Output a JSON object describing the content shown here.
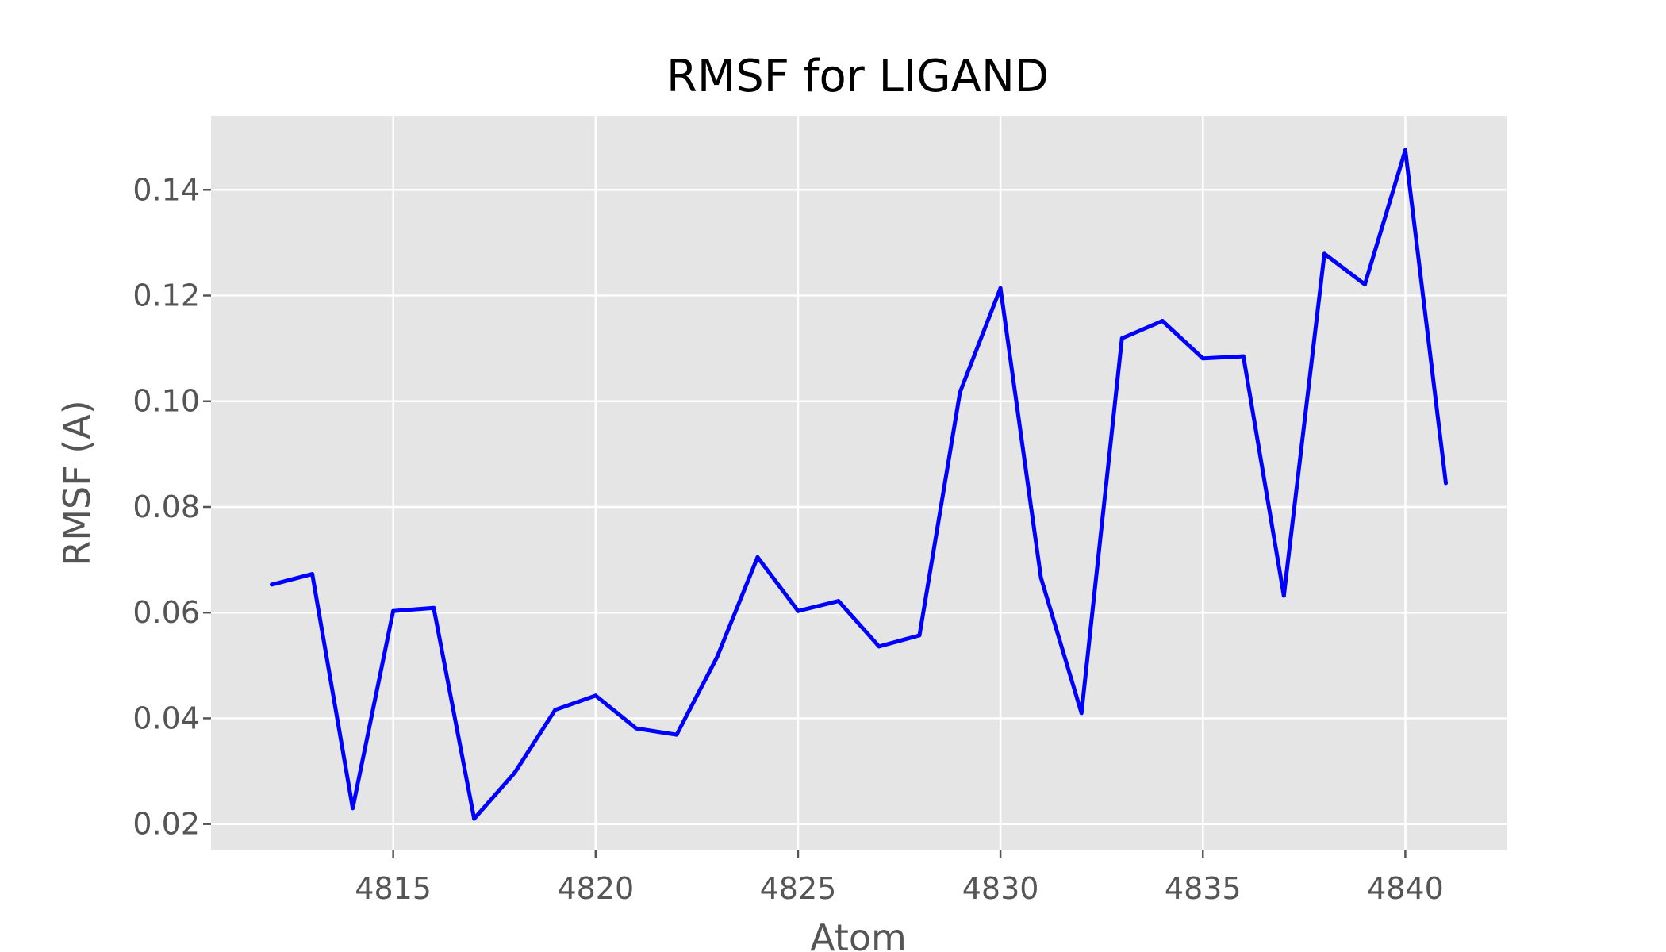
{
  "chart_data": {
    "type": "line",
    "title": "RMSF for LIGAND",
    "xlabel": "Atom",
    "ylabel": "RMSF (A)",
    "xlim": [
      4810.5,
      4842.5
    ],
    "ylim": [
      0.015,
      0.154
    ],
    "xticks": [
      4815,
      4820,
      4825,
      4830,
      4835,
      4840
    ],
    "yticks": [
      0.02,
      0.04,
      0.06,
      0.08,
      0.1,
      0.12,
      0.14
    ],
    "ytick_labels": [
      "0.02",
      "0.04",
      "0.06",
      "0.08",
      "0.10",
      "0.12",
      "0.14"
    ],
    "grid": true,
    "style": "ggplot",
    "background_color": "#e5e5e5",
    "grid_color": "#ffffff",
    "series": [
      {
        "color": "#0000ff",
        "x": [
          4812,
          4813,
          4814,
          4815,
          4816,
          4817,
          4818,
          4819,
          4820,
          4821,
          4822,
          4823,
          4824,
          4825,
          4826,
          4827,
          4828,
          4829,
          4830,
          4831,
          4832,
          4833,
          4834,
          4835,
          4836,
          4837,
          4838,
          4839,
          4840,
          4841
        ],
        "y": [
          0.0653,
          0.0673,
          0.023,
          0.0603,
          0.0609,
          0.021,
          0.0297,
          0.0416,
          0.0443,
          0.0381,
          0.0369,
          0.0516,
          0.0705,
          0.0603,
          0.0622,
          0.0536,
          0.0557,
          0.1017,
          0.1214,
          0.0666,
          0.041,
          0.1119,
          0.1152,
          0.1081,
          0.1085,
          0.0632,
          0.1279,
          0.1221,
          0.1475,
          0.0845
        ]
      }
    ]
  }
}
